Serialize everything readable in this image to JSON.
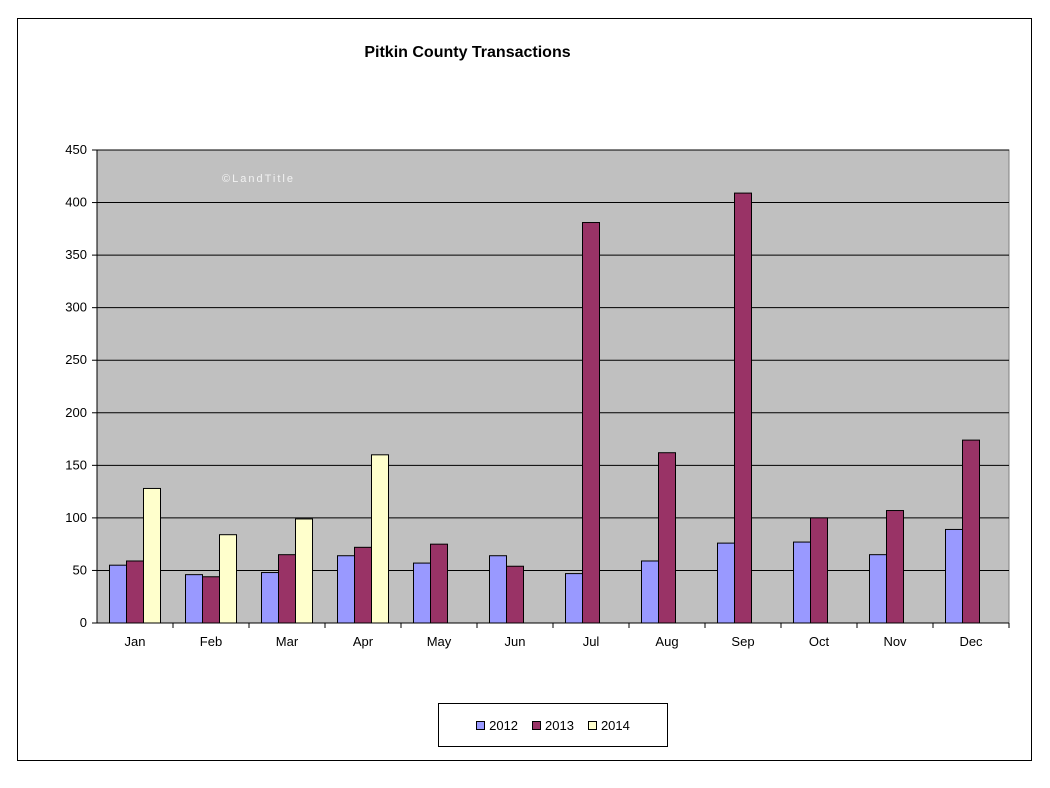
{
  "chart_data": {
    "type": "bar",
    "title": "Pitkin County Transactions",
    "watermark": "©LandTitle",
    "categories": [
      "Jan",
      "Feb",
      "Mar",
      "Apr",
      "May",
      "Jun",
      "Jul",
      "Aug",
      "Sep",
      "Oct",
      "Nov",
      "Dec"
    ],
    "series": [
      {
        "name": "2012",
        "color": "#9999ff",
        "values": [
          55,
          46,
          48,
          64,
          57,
          64,
          47,
          59,
          76,
          77,
          65,
          89
        ]
      },
      {
        "name": "2013",
        "color": "#993366",
        "values": [
          59,
          44,
          65,
          72,
          75,
          54,
          381,
          162,
          409,
          100,
          107,
          174
        ]
      },
      {
        "name": "2014",
        "color": "#ffffcc",
        "values": [
          128,
          84,
          99,
          160,
          null,
          null,
          null,
          null,
          null,
          null,
          null,
          null
        ]
      }
    ],
    "ylim": [
      0,
      450
    ],
    "yticks": [
      0,
      50,
      100,
      150,
      200,
      250,
      300,
      350,
      400,
      450
    ],
    "plot_background": "#c0c0c0",
    "grid": true,
    "legend_position": "bottom"
  }
}
